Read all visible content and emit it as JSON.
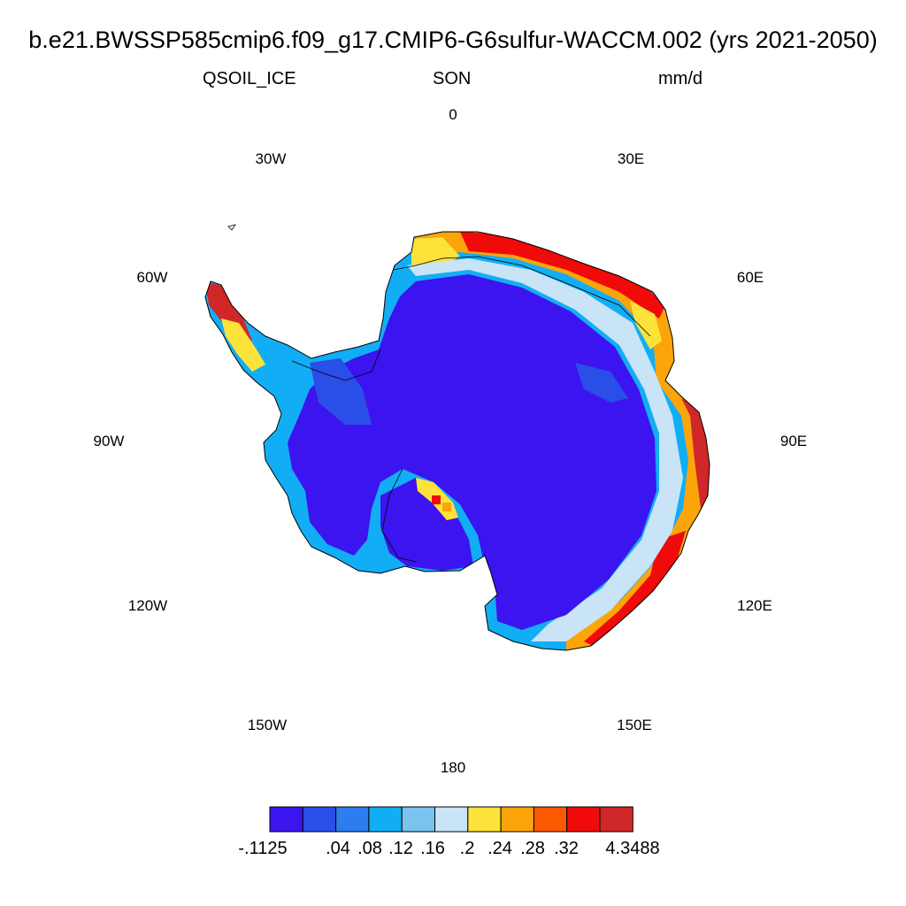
{
  "title": "b.e21.BWSSP585cmip6.f09_g17.CMIP6-G6sulfur-WACCM.002 (yrs 2021-2050)",
  "subtitle_left": "QSOIL_ICE",
  "subtitle_center": "SON",
  "subtitle_right": "mm/d",
  "lon_labels": [
    "0",
    "30E",
    "60E",
    "90E",
    "120E",
    "150E",
    "180",
    "150W",
    "120W",
    "90W",
    "60W",
    "30W"
  ],
  "colorbar": {
    "colors": [
      "#3c14f0",
      "#2a4ee8",
      "#2c7ef0",
      "#12aef5",
      "#78c4ee",
      "#c8e4f6",
      "#fde23a",
      "#fca50a",
      "#fc5a00",
      "#f00a0a",
      "#d02828"
    ],
    "labels": [
      "-.1125",
      ".04",
      ".08",
      ".12",
      ".16",
      ".2",
      ".24",
      ".28",
      ".32",
      "4.3488"
    ]
  },
  "map": {
    "projection": "south-polar-stereographic",
    "field": "QSOIL_ICE",
    "background_value_class": 0,
    "coastal_band": "high values along East Antarctic coast (Dronning Maud Land, Wilkes Land), low values over interior"
  }
}
